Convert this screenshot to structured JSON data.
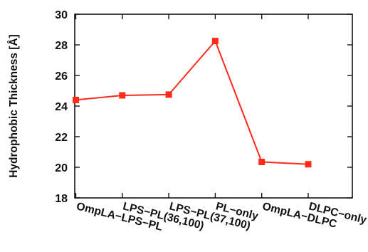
{
  "chart_data": {
    "type": "line",
    "title": "",
    "xlabel": "",
    "ylabel": "Hydrophobic Thickness [Å]",
    "categories": [
      "OmpLA−LPS−PL",
      "LPS−PL(36,100)",
      "LPS−PL(37,100)",
      "PL−only",
      "OmpLA−DLPC",
      "DLPC−only"
    ],
    "series": [
      {
        "values": [
          24.4,
          24.7,
          24.75,
          28.25,
          20.35,
          20.2
        ]
      }
    ],
    "ylim": [
      18,
      30
    ],
    "yticks": [
      18,
      20,
      22,
      24,
      26,
      28,
      30
    ],
    "grid": false,
    "marker": "square"
  },
  "colors": {
    "series": "#ff2a1a",
    "axis": "#111111"
  }
}
